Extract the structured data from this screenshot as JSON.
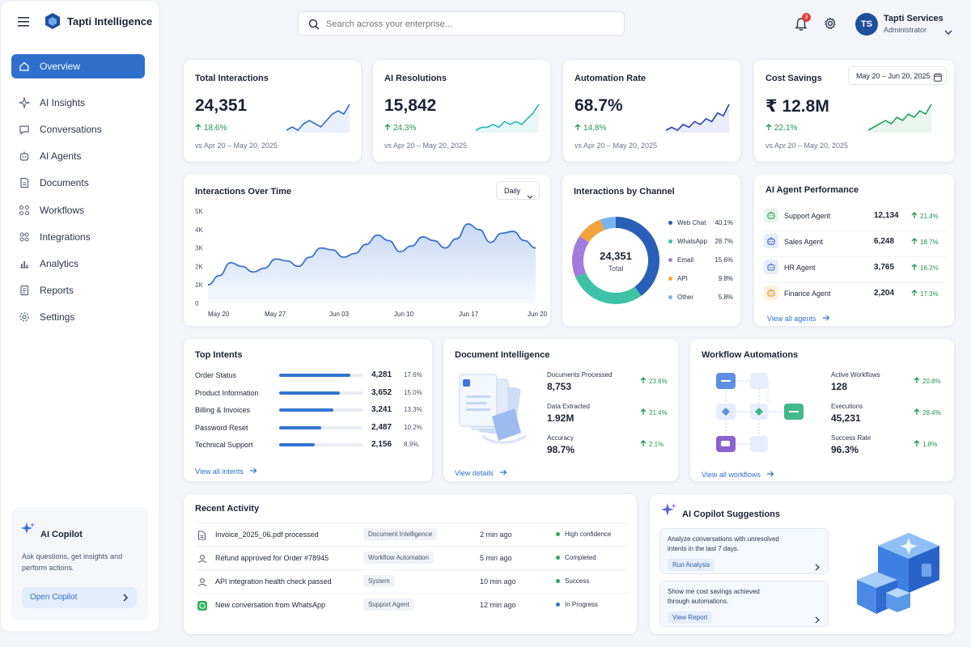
{
  "app": {
    "name": "Tapti Intelligence"
  },
  "search": {
    "placeholder": "Search across your enterprise..."
  },
  "header": {
    "notif_count": "3",
    "user_initials": "TS",
    "user_name": "Tapti Services",
    "user_role": "Administrator"
  },
  "nav": [
    {
      "label": "Overview",
      "icon": "home-icon"
    },
    {
      "label": "AI Insights",
      "icon": "sparkle-icon"
    },
    {
      "label": "Conversations",
      "icon": "chat-icon"
    },
    {
      "label": "AI Agents",
      "icon": "robot-icon"
    },
    {
      "label": "Documents",
      "icon": "document-icon"
    },
    {
      "label": "Workflows",
      "icon": "workflow-icon"
    },
    {
      "label": "Integrations",
      "icon": "integrations-icon"
    },
    {
      "label": "Analytics",
      "icon": "analytics-icon"
    },
    {
      "label": "Reports",
      "icon": "report-icon"
    },
    {
      "label": "Settings",
      "icon": "gear-icon"
    }
  ],
  "copilot": {
    "title": "AI Copilot",
    "desc1": "Ask questions, get insights and",
    "desc2": "perform actions.",
    "button": "Open Copilot"
  },
  "date_range": "May 20 – Jun 20, 2025",
  "kpis": [
    {
      "title": "Total Interactions",
      "value": "24,351",
      "delta": "18.6%",
      "sub": "vs Apr 20 – May 20, 2025",
      "color": "#2e6fcb",
      "spark": [
        4,
        5,
        4,
        6,
        7,
        6,
        5,
        7,
        9,
        10,
        9,
        12
      ]
    },
    {
      "title": "AI Resolutions",
      "value": "15,842",
      "delta": "24.3%",
      "sub": "vs Apr 20 – May 20, 2025",
      "color": "#25b7b0",
      "spark": [
        4,
        5,
        5,
        6,
        5,
        7,
        6,
        7,
        6,
        8,
        10,
        13
      ]
    },
    {
      "title": "Automation Rate",
      "value": "68.7%",
      "delta": "14.8%",
      "sub": "vs Apr 20 – May 20, 2025",
      "color": "#2a3fb5",
      "spark": [
        4,
        5,
        4,
        6,
        5,
        7,
        6,
        8,
        7,
        10,
        9,
        13
      ]
    },
    {
      "title": "Cost Savings",
      "value": "₹ 12.8M",
      "delta": "22.1%",
      "sub": "vs Apr 20 – May 20, 2025",
      "color": "#23a05a",
      "spark": [
        4,
        5,
        6,
        7,
        6,
        8,
        7,
        9,
        8,
        10,
        9,
        12
      ]
    }
  ],
  "interactions_chart": {
    "title": "Interactions Over Time",
    "granularity": "Daily",
    "chart_data": {
      "type": "area",
      "y_ticks": [
        "5K",
        "4K",
        "3K",
        "2K",
        "1K",
        "0"
      ],
      "x_ticks": [
        "May 20",
        "May 27",
        "Jun 03",
        "Jun 10",
        "Jun 17",
        "Jun 20"
      ],
      "ylim": [
        0,
        5000
      ],
      "values": [
        1000,
        1500,
        2200,
        2000,
        1700,
        1900,
        2400,
        2300,
        2000,
        2500,
        3000,
        2900,
        2500,
        2700,
        3200,
        3700,
        3400,
        2800,
        3100,
        3600,
        3400,
        3000,
        3500,
        4300,
        4000,
        3300,
        3800,
        3900,
        3400,
        3000
      ]
    }
  },
  "channel_chart": {
    "title": "Interactions by Channel",
    "center_value": "24,351",
    "center_label": "Total",
    "chart_data": {
      "type": "pie",
      "labels": [
        "Web Chat",
        "WhatsApp",
        "Email",
        "API",
        "Other"
      ],
      "values": [
        40.1,
        28.7,
        15.6,
        9.8,
        5.8
      ],
      "display": [
        "40.1%",
        "28.7%",
        "15.6%",
        "9.8%",
        "5.8%"
      ],
      "colors": [
        "#2a5fb8",
        "#3ec2a6",
        "#a27be0",
        "#f1a43b",
        "#7ab4ee"
      ]
    }
  },
  "agents": {
    "title": "AI Agent Performance",
    "rows": [
      {
        "name": "Support Agent",
        "value": "12,134",
        "delta": "21.4%",
        "icon": "support-agent-icon",
        "color": "#3aa76d",
        "bg": "#e6f5ec"
      },
      {
        "name": "Sales Agent",
        "value": "6,248",
        "delta": "18.7%",
        "icon": "sales-agent-icon",
        "color": "#3e66c9",
        "bg": "#e7edf9"
      },
      {
        "name": "HR Agent",
        "value": "3,765",
        "delta": "16.2%",
        "icon": "hr-agent-icon",
        "color": "#4a7fd0",
        "bg": "#e8eef8"
      },
      {
        "name": "Finance Agent",
        "value": "2,204",
        "delta": "17.3%",
        "icon": "finance-agent-icon",
        "color": "#e79a3a",
        "bg": "#fcf0e0"
      }
    ],
    "link": "View all agents"
  },
  "intents": {
    "title": "Top Intents",
    "rows": [
      {
        "name": "Order Status",
        "value": "4,281",
        "pct": "17.6%",
        "fill": 0.85
      },
      {
        "name": "Product Information",
        "value": "3,652",
        "pct": "15.0%",
        "fill": 0.73
      },
      {
        "name": "Billing & Invoices",
        "value": "3,241",
        "pct": "13.3%",
        "fill": 0.65
      },
      {
        "name": "Password Reset",
        "value": "2,487",
        "pct": "10.2%",
        "fill": 0.5
      },
      {
        "name": "Technical Support",
        "value": "2,156",
        "pct": "8.9%",
        "fill": 0.43
      }
    ],
    "link": "View all intents"
  },
  "docs": {
    "title": "Document Intelligence",
    "stats": [
      {
        "label": "Documents Processed",
        "value": "8,753",
        "delta": "23.6%"
      },
      {
        "label": "Data Extracted",
        "value": "1.92M",
        "delta": "31.4%"
      },
      {
        "label": "Accuracy",
        "value": "98.7%",
        "delta": "2.1%"
      }
    ],
    "link": "View details"
  },
  "workflows": {
    "title": "Workflow Automations",
    "stats": [
      {
        "label": "Active Workflows",
        "value": "128",
        "delta": "20.8%"
      },
      {
        "label": "Executions",
        "value": "45,231",
        "delta": "28.4%"
      },
      {
        "label": "Success Rate",
        "value": "96.3%",
        "delta": "1.8%"
      }
    ],
    "link": "View all workflows"
  },
  "activity": {
    "title": "Recent Activity",
    "rows": [
      {
        "text": "Invoice_2025_06.pdf processed",
        "tag": "Document Intelligence",
        "time": "2 min ago",
        "status": "High confidence",
        "status_color": "#2fa55f",
        "icon": "document-icon"
      },
      {
        "text": "Refund approved for Order #78945",
        "tag": "Workflow Automation",
        "time": "5 min ago",
        "status": "Completed",
        "status_color": "#2fa55f",
        "icon": "user-icon"
      },
      {
        "text": "API integration health check passed",
        "tag": "System",
        "time": "10 min ago",
        "status": "Success",
        "status_color": "#2fa55f",
        "icon": "user-icon"
      },
      {
        "text": "New conversation from WhatsApp",
        "tag": "Support Agent",
        "time": "12 min ago",
        "status": "In Progress",
        "status_color": "#2e6fcb",
        "icon": "whatsapp-icon"
      }
    ]
  },
  "suggestions": {
    "title": "AI Copilot Suggestions",
    "items": [
      {
        "text1": "Analyze conversations with unresolved",
        "text2": "intents in the last 7 days.",
        "action": "Run Analysis"
      },
      {
        "text1": "Show me cost savings achieved",
        "text2": "through automations.",
        "action": "View Report"
      }
    ]
  }
}
